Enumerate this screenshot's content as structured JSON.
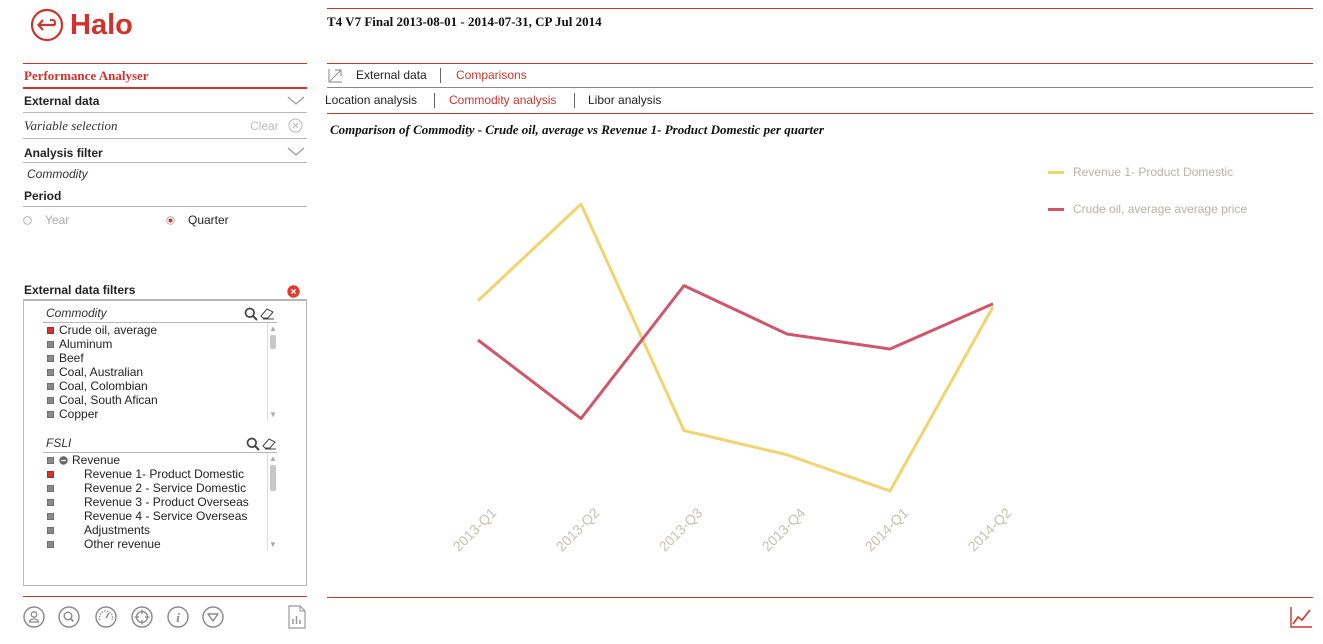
{
  "app": {
    "logo_text": "Halo"
  },
  "header": {
    "title": "T4 V7 Final 2013-08-01 - 2014-07-31, CP Jul 2014"
  },
  "left_panel": {
    "section_title": "Performance Analyser",
    "external_data_label": "External data",
    "variable_selection_label": "Variable selection",
    "clear_label": "Clear",
    "analysis_filter_label": "Analysis filter",
    "analysis_filter_value": "Commodity",
    "period_label": "Period",
    "period_options": [
      {
        "label": "Year",
        "selected": false
      },
      {
        "label": "Quarter",
        "selected": true
      }
    ],
    "external_data_filters_label": "External data filters",
    "commodity_list": {
      "title": "Commodity",
      "items": [
        {
          "label": "Crude oil, average",
          "selected": true
        },
        {
          "label": "Aluminum",
          "selected": false
        },
        {
          "label": "Beef",
          "selected": false
        },
        {
          "label": "Coal, Australian",
          "selected": false
        },
        {
          "label": "Coal, Colombian",
          "selected": false
        },
        {
          "label": "Coal, South Afican",
          "selected": false
        },
        {
          "label": "Copper",
          "selected": false
        }
      ]
    },
    "fsli_list": {
      "title": "FSLI",
      "parent": "Revenue",
      "items": [
        {
          "label": "Revenue 1-  Product Domestic",
          "selected": true
        },
        {
          "label": "Revenue 2 - Service Domestic",
          "selected": false
        },
        {
          "label": "Revenue 3 - Product Overseas",
          "selected": false
        },
        {
          "label": "Revenue 4 - Service Overseas",
          "selected": false
        },
        {
          "label": "Adjustments",
          "selected": false
        },
        {
          "label": "Other revenue",
          "selected": false
        }
      ]
    },
    "bottom_icons": [
      "user-icon",
      "search-circle-icon",
      "gauge-icon",
      "target-icon",
      "info-icon",
      "filter-down-icon",
      "report-icon"
    ]
  },
  "tabs": {
    "primary": [
      {
        "label": "External data",
        "active": false
      },
      {
        "label": "Comparisons",
        "active": true
      }
    ],
    "secondary": [
      {
        "label": "Location analysis",
        "active": false
      },
      {
        "label": "Commodity analysis",
        "active": true
      },
      {
        "label": "Libor analysis",
        "active": false
      }
    ]
  },
  "colors": {
    "accent": "#d2322d",
    "revenue_line": "#f2d46e",
    "crude_line": "#d0566d"
  },
  "chart_data": {
    "type": "line",
    "title": "Comparison of  Commodity - Crude oil, average vs Revenue 1-  Product Domestic per quarter",
    "categories": [
      "2013-Q1",
      "2013-Q2",
      "2013-Q3",
      "2013-Q4",
      "2014-Q1",
      "2014-Q2"
    ],
    "series": [
      {
        "name": "Revenue 1-  Product Domestic",
        "color": "#f2d46e",
        "values": [
          0.63,
          0.95,
          0.2,
          0.12,
          0.0,
          0.61
        ]
      },
      {
        "name": "Crude oil, average average price",
        "color": "#d0566d",
        "values": [
          0.5,
          0.24,
          0.68,
          0.52,
          0.47,
          0.62
        ]
      }
    ],
    "legend_position": "top-right",
    "grid": false,
    "y_axis_visible": false
  }
}
